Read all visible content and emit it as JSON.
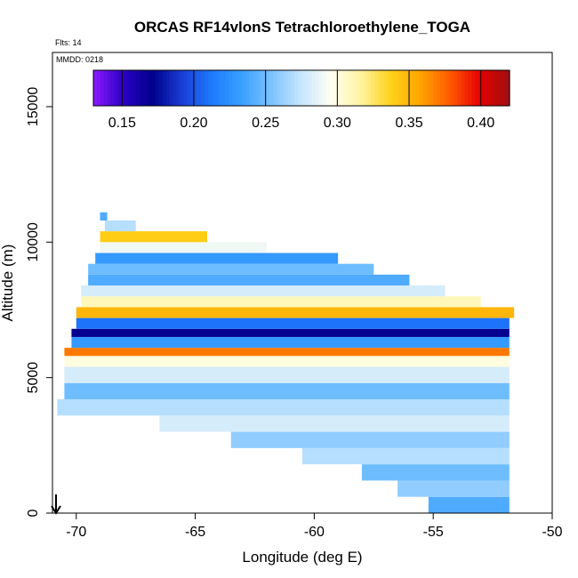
{
  "chart_data": {
    "type": "heatmap",
    "title": "ORCAS RF14vlonS Tetrachloroethylene_TOGA",
    "flights_label": "Flts: 14",
    "date_label": "MMDD: 0218",
    "xlabel": "Longitude (deg E)",
    "ylabel": "Altitude (m)",
    "xlim": [
      -71.0,
      -50.0
    ],
    "ylim": [
      0,
      17000
    ],
    "x_ticks": [
      -70,
      -65,
      -60,
      -55,
      -50
    ],
    "x_tick_labels": [
      "-70",
      "-65",
      "-60",
      "-55",
      "-50"
    ],
    "y_ticks": [
      0,
      5000,
      10000,
      15000
    ],
    "y_tick_labels": [
      "0",
      "5000",
      "10000",
      "15000"
    ],
    "colorbar": {
      "range": [
        0.13,
        0.42
      ],
      "ticks": [
        0.15,
        0.2,
        0.25,
        0.3,
        0.35,
        0.4
      ],
      "tick_labels": [
        "0.15",
        "0.20",
        "0.25",
        "0.30",
        "0.35",
        "0.40"
      ],
      "colors": [
        "#8b1aff",
        "#2b00c4",
        "#00008b",
        "#1a3fd6",
        "#1e7bff",
        "#3aa0ff",
        "#7cc4ff",
        "#c8e6ff",
        "#fffff0",
        "#fff3a0",
        "#ffd21a",
        "#ffa500",
        "#ff5a00",
        "#e60000",
        "#a01010"
      ]
    },
    "bands": [
      {
        "alt_min": 0,
        "alt_max": 600,
        "lon_min": -55.2,
        "lon_max": -51.8,
        "value": 0.24
      },
      {
        "alt_min": 600,
        "alt_max": 1200,
        "lon_min": -56.5,
        "lon_max": -51.8,
        "value": 0.26
      },
      {
        "alt_min": 1200,
        "alt_max": 1800,
        "lon_min": -58.0,
        "lon_max": -51.8,
        "value": 0.25
      },
      {
        "alt_min": 1800,
        "alt_max": 2400,
        "lon_min": -60.5,
        "lon_max": -51.8,
        "value": 0.27
      },
      {
        "alt_min": 2400,
        "alt_max": 3000,
        "lon_min": -63.5,
        "lon_max": -51.8,
        "value": 0.26
      },
      {
        "alt_min": 3000,
        "alt_max": 3600,
        "lon_min": -66.5,
        "lon_max": -51.8,
        "value": 0.28
      },
      {
        "alt_min": 3600,
        "alt_max": 4200,
        "lon_min": -70.8,
        "lon_max": -51.8,
        "value": 0.27
      },
      {
        "alt_min": 4200,
        "alt_max": 4800,
        "lon_min": -70.5,
        "lon_max": -51.8,
        "value": 0.25
      },
      {
        "alt_min": 4800,
        "alt_max": 5400,
        "lon_min": -70.5,
        "lon_max": -51.8,
        "value": 0.28
      },
      {
        "alt_min": 5400,
        "alt_max": 5800,
        "lon_min": -70.5,
        "lon_max": -51.8,
        "value": 0.3
      },
      {
        "alt_min": 5800,
        "alt_max": 6100,
        "lon_min": -70.5,
        "lon_max": -51.8,
        "value": 0.37
      },
      {
        "alt_min": 6100,
        "alt_max": 6500,
        "lon_min": -70.2,
        "lon_max": -51.8,
        "value": 0.23
      },
      {
        "alt_min": 6500,
        "alt_max": 6800,
        "lon_min": -70.2,
        "lon_max": -51.8,
        "value": 0.17
      },
      {
        "alt_min": 6800,
        "alt_max": 7200,
        "lon_min": -70.0,
        "lon_max": -51.8,
        "value": 0.21
      },
      {
        "alt_min": 7200,
        "alt_max": 7600,
        "lon_min": -70.0,
        "lon_max": -51.6,
        "value": 0.35
      },
      {
        "alt_min": 7600,
        "alt_max": 8000,
        "lon_min": -69.8,
        "lon_max": -53.0,
        "value": 0.31
      },
      {
        "alt_min": 8000,
        "alt_max": 8400,
        "lon_min": -69.8,
        "lon_max": -54.5,
        "value": 0.28
      },
      {
        "alt_min": 8400,
        "alt_max": 8800,
        "lon_min": -69.5,
        "lon_max": -56.0,
        "value": 0.24
      },
      {
        "alt_min": 8800,
        "alt_max": 9200,
        "lon_min": -69.5,
        "lon_max": -57.5,
        "value": 0.25
      },
      {
        "alt_min": 9200,
        "alt_max": 9600,
        "lon_min": -69.2,
        "lon_max": -59.0,
        "value": 0.23
      },
      {
        "alt_min": 9600,
        "alt_max": 10000,
        "lon_min": -69.0,
        "lon_max": -62.0,
        "value": 0.29
      },
      {
        "alt_min": 10000,
        "alt_max": 10400,
        "lon_min": -69.0,
        "lon_max": -64.5,
        "value": 0.34
      },
      {
        "alt_min": 10400,
        "alt_max": 10800,
        "lon_min": -68.8,
        "lon_max": -67.5,
        "value": 0.27
      },
      {
        "alt_min": 10800,
        "alt_max": 11100,
        "lon_min": -69.0,
        "lon_max": -68.7,
        "value": 0.24
      }
    ]
  }
}
